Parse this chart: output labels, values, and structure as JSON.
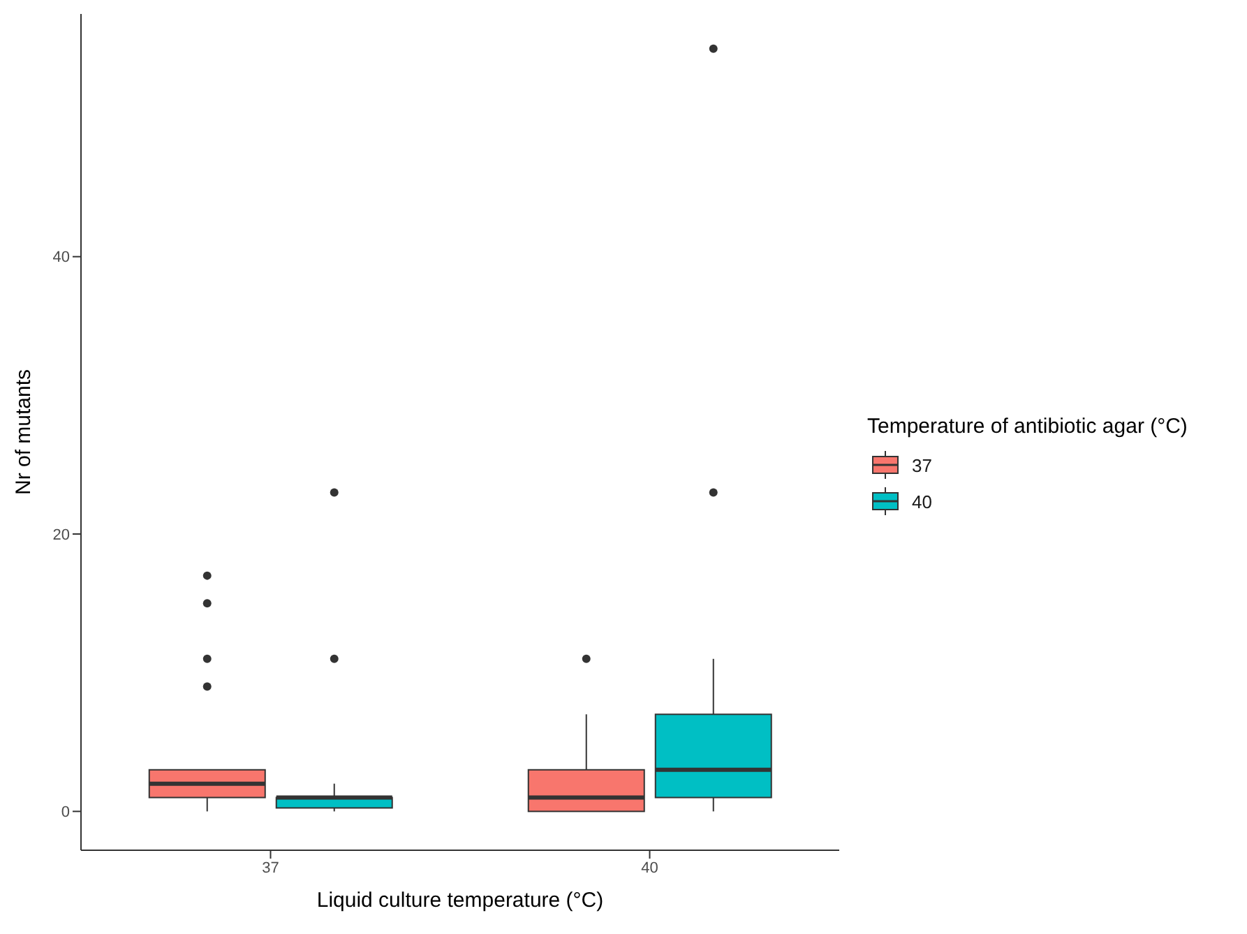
{
  "chart_data": {
    "type": "box",
    "xlabel": "Liquid culture temperature (°C)",
    "ylabel": "Nr of mutants",
    "legend_title": "Temperature of antibiotic agar (°C)",
    "categories": [
      "37",
      "40"
    ],
    "ylim": [
      -2.8,
      57.5
    ],
    "yticks": [
      0,
      20,
      40
    ],
    "grid": false,
    "legend": "right",
    "series": [
      {
        "name": "37",
        "color": "#f8766d",
        "boxes": [
          {
            "low": 0,
            "q1": 1,
            "median": 2,
            "q3": 3,
            "high": 3,
            "outliers": [
              9,
              11,
              15,
              17
            ]
          },
          {
            "low": 0,
            "q1": 0,
            "median": 1,
            "q3": 3,
            "high": 7,
            "outliers": [
              11
            ]
          }
        ]
      },
      {
        "name": "40",
        "color": "#00bfc4",
        "boxes": [
          {
            "low": 0,
            "q1": 0.25,
            "median": 1,
            "q3": 1,
            "high": 2,
            "outliers": [
              11,
              23
            ]
          },
          {
            "low": 0,
            "q1": 1,
            "median": 3,
            "q3": 7,
            "high": 11,
            "outliers": [
              23,
              55
            ]
          }
        ]
      }
    ]
  }
}
